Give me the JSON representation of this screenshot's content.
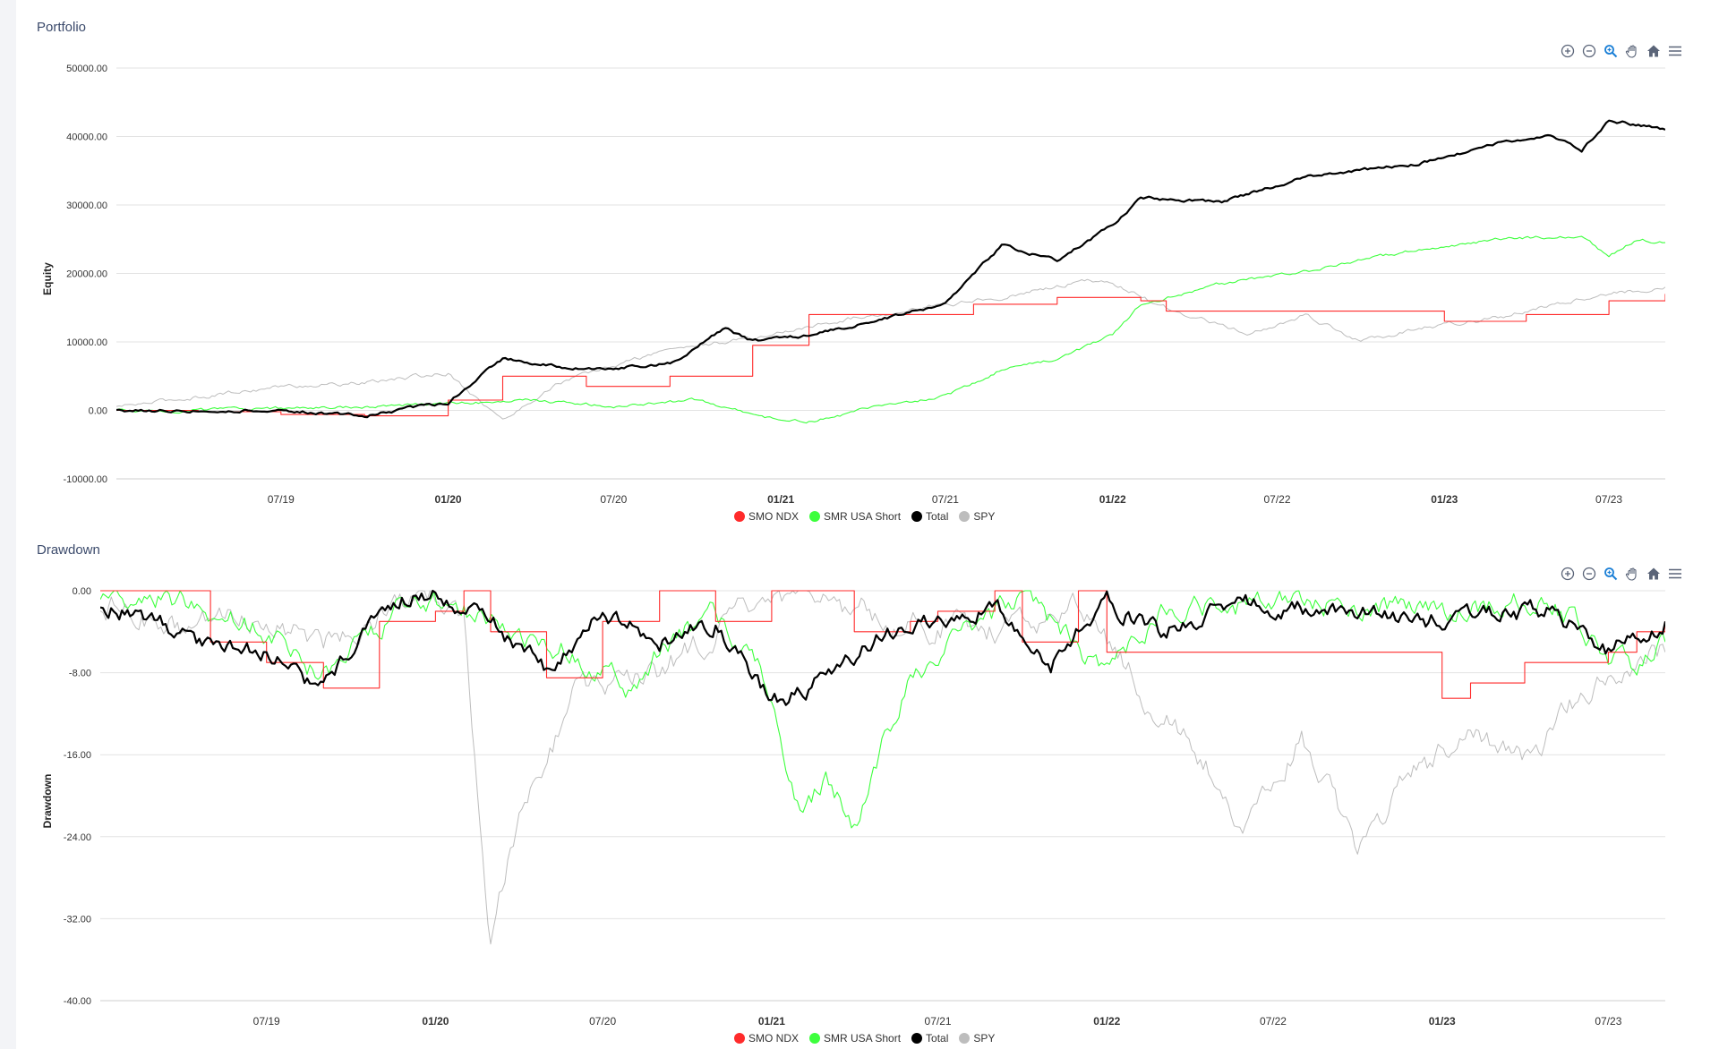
{
  "colors": {
    "smo_ndx": "#ff2b2b",
    "smr_usa_short": "#3dff3d",
    "total": "#000000",
    "spy": "#bdbdbd"
  },
  "toolbar_icons": [
    "zoom-in-icon",
    "zoom-out-icon",
    "magnifier-icon",
    "pan-hand-icon",
    "home-icon",
    "menu-icon"
  ],
  "chart_data": [
    {
      "type": "line",
      "title": "Portfolio",
      "ylabel": "Equity",
      "ylim": [
        -10000,
        50000
      ],
      "yticks": [
        "50000.00",
        "40000.00",
        "30000.00",
        "20000.00",
        "10000.00",
        "0.00",
        "-10000.00"
      ],
      "xlim": [
        "2019-01-01",
        "2023-09-01"
      ],
      "xticks": [
        {
          "label": "07/19",
          "date": "2019-07-01",
          "bold": false
        },
        {
          "label": "01/20",
          "date": "2020-01-01",
          "bold": true
        },
        {
          "label": "07/20",
          "date": "2020-07-01",
          "bold": false
        },
        {
          "label": "01/21",
          "date": "2021-01-01",
          "bold": true
        },
        {
          "label": "07/21",
          "date": "2021-07-01",
          "bold": false
        },
        {
          "label": "01/22",
          "date": "2022-01-01",
          "bold": true
        },
        {
          "label": "07/22",
          "date": "2022-07-01",
          "bold": false
        },
        {
          "label": "01/23",
          "date": "2023-01-01",
          "bold": true
        },
        {
          "label": "07/23",
          "date": "2023-07-01",
          "bold": false
        }
      ],
      "grid": true,
      "legend_position": "bottom-center",
      "series": [
        {
          "name": "SMO NDX",
          "color": "#ff2b2b",
          "step": true,
          "points": [
            [
              "2019-01-01",
              0
            ],
            [
              "2019-04-01",
              -200
            ],
            [
              "2019-07-01",
              -600
            ],
            [
              "2019-10-01",
              -800
            ],
            [
              "2020-01-01",
              1500
            ],
            [
              "2020-03-01",
              5000
            ],
            [
              "2020-06-01",
              3500
            ],
            [
              "2020-09-01",
              5000
            ],
            [
              "2020-12-01",
              9500
            ],
            [
              "2021-02-01",
              14000
            ],
            [
              "2021-05-01",
              14000
            ],
            [
              "2021-08-01",
              15500
            ],
            [
              "2021-11-01",
              16500
            ],
            [
              "2022-02-01",
              16000
            ],
            [
              "2022-03-01",
              14500
            ],
            [
              "2022-09-01",
              14500
            ],
            [
              "2023-01-01",
              13000
            ],
            [
              "2023-04-01",
              14000
            ],
            [
              "2023-07-01",
              16000
            ],
            [
              "2023-09-01",
              17000
            ]
          ]
        },
        {
          "name": "SMR USA Short",
          "color": "#3dff3d",
          "step": false,
          "points": [
            [
              "2019-01-01",
              0
            ],
            [
              "2019-04-01",
              0
            ],
            [
              "2019-07-01",
              300
            ],
            [
              "2019-10-01",
              500
            ],
            [
              "2020-01-01",
              1000
            ],
            [
              "2020-04-01",
              1500
            ],
            [
              "2020-07-01",
              600
            ],
            [
              "2020-10-01",
              1500
            ],
            [
              "2021-01-01",
              -1500
            ],
            [
              "2021-02-01",
              -1500
            ],
            [
              "2021-03-01",
              -1000
            ],
            [
              "2021-05-01",
              1000
            ],
            [
              "2021-07-01",
              2000
            ],
            [
              "2021-09-01",
              6000
            ],
            [
              "2021-11-01",
              7500
            ],
            [
              "2022-01-01",
              11000
            ],
            [
              "2022-02-01",
              15500
            ],
            [
              "2022-05-01",
              18500
            ],
            [
              "2022-09-01",
              21000
            ],
            [
              "2022-12-01",
              23500
            ],
            [
              "2023-03-01",
              25000
            ],
            [
              "2023-06-01",
              25500
            ],
            [
              "2023-07-01",
              22500
            ],
            [
              "2023-08-01",
              25000
            ],
            [
              "2023-09-01",
              24500
            ]
          ]
        },
        {
          "name": "Total",
          "color": "#000000",
          "step": false,
          "points": [
            [
              "2019-01-01",
              0
            ],
            [
              "2019-04-01",
              0
            ],
            [
              "2019-07-01",
              0
            ],
            [
              "2019-10-01",
              -800
            ],
            [
              "2020-01-01",
              1200
            ],
            [
              "2020-03-01",
              7500
            ],
            [
              "2020-06-01",
              6000
            ],
            [
              "2020-09-01",
              6800
            ],
            [
              "2020-11-01",
              12000
            ],
            [
              "2020-12-01",
              10000
            ],
            [
              "2021-02-01",
              11000
            ],
            [
              "2021-05-01",
              13500
            ],
            [
              "2021-07-01",
              15500
            ],
            [
              "2021-09-01",
              24000
            ],
            [
              "2021-11-01",
              22000
            ],
            [
              "2022-01-01",
              27000
            ],
            [
              "2022-02-01",
              31000
            ],
            [
              "2022-05-01",
              30500
            ],
            [
              "2022-08-01",
              34000
            ],
            [
              "2022-12-01",
              36000
            ],
            [
              "2023-03-01",
              39000
            ],
            [
              "2023-05-01",
              40000
            ],
            [
              "2023-06-01",
              38000
            ],
            [
              "2023-07-01",
              42500
            ],
            [
              "2023-09-01",
              41000
            ]
          ]
        },
        {
          "name": "SPY",
          "color": "#bdbdbd",
          "step": false,
          "points": [
            [
              "2019-01-01",
              500
            ],
            [
              "2019-04-01",
              2000
            ],
            [
              "2019-07-01",
              3500
            ],
            [
              "2019-10-01",
              4000
            ],
            [
              "2020-01-01",
              5500
            ],
            [
              "2020-03-01",
              -1500
            ],
            [
              "2020-05-01",
              4000
            ],
            [
              "2020-09-01",
              9000
            ],
            [
              "2020-12-01",
              10500
            ],
            [
              "2021-03-01",
              13000
            ],
            [
              "2021-06-01",
              15000
            ],
            [
              "2021-09-01",
              16500
            ],
            [
              "2021-12-01",
              19000
            ],
            [
              "2022-01-01",
              18500
            ],
            [
              "2022-03-01",
              15000
            ],
            [
              "2022-06-01",
              11000
            ],
            [
              "2022-08-01",
              14000
            ],
            [
              "2022-10-01",
              10000
            ],
            [
              "2022-12-01",
              12000
            ],
            [
              "2023-03-01",
              13500
            ],
            [
              "2023-06-01",
              16500
            ],
            [
              "2023-09-01",
              18000
            ]
          ]
        }
      ]
    },
    {
      "type": "line",
      "title": "Drawdown",
      "ylabel": "Drawdown",
      "ylim": [
        -40,
        0
      ],
      "yticks": [
        "0.00",
        "-8.00",
        "-16.00",
        "-24.00",
        "-32.00",
        "-40.00"
      ],
      "xlim": [
        "2019-01-01",
        "2023-09-01"
      ],
      "xticks": [
        {
          "label": "07/19",
          "date": "2019-07-01",
          "bold": false
        },
        {
          "label": "01/20",
          "date": "2020-01-01",
          "bold": true
        },
        {
          "label": "07/20",
          "date": "2020-07-01",
          "bold": false
        },
        {
          "label": "01/21",
          "date": "2021-01-01",
          "bold": true
        },
        {
          "label": "07/21",
          "date": "2021-07-01",
          "bold": false
        },
        {
          "label": "01/22",
          "date": "2022-01-01",
          "bold": true
        },
        {
          "label": "07/22",
          "date": "2022-07-01",
          "bold": false
        },
        {
          "label": "01/23",
          "date": "2023-01-01",
          "bold": true
        },
        {
          "label": "07/23",
          "date": "2023-07-01",
          "bold": false
        }
      ],
      "grid": true,
      "legend_position": "bottom-center",
      "series": [
        {
          "name": "SMO NDX",
          "color": "#ff2b2b",
          "step": true,
          "points": [
            [
              "2019-01-01",
              0
            ],
            [
              "2019-05-01",
              -5
            ],
            [
              "2019-07-01",
              -7
            ],
            [
              "2019-09-01",
              -9.5
            ],
            [
              "2019-11-01",
              -3
            ],
            [
              "2020-01-01",
              -2
            ],
            [
              "2020-02-01",
              0
            ],
            [
              "2020-03-01",
              -4
            ],
            [
              "2020-05-01",
              -8.5
            ],
            [
              "2020-07-01",
              -3
            ],
            [
              "2020-09-01",
              0
            ],
            [
              "2020-11-01",
              -3
            ],
            [
              "2021-01-01",
              0
            ],
            [
              "2021-04-01",
              -4
            ],
            [
              "2021-06-01",
              -3
            ],
            [
              "2021-07-01",
              -2
            ],
            [
              "2021-09-01",
              0
            ],
            [
              "2021-10-01",
              -5
            ],
            [
              "2021-12-01",
              0
            ],
            [
              "2022-01-01",
              -6
            ],
            [
              "2022-12-01",
              -6
            ],
            [
              "2023-01-01",
              -10.5
            ],
            [
              "2023-02-01",
              -9
            ],
            [
              "2023-04-01",
              -7
            ],
            [
              "2023-07-01",
              -6
            ],
            [
              "2023-08-01",
              -4
            ],
            [
              "2023-09-01",
              -3
            ]
          ]
        },
        {
          "name": "SMR USA Short",
          "color": "#3dff3d",
          "step": false,
          "points": [
            [
              "2019-01-01",
              0
            ],
            [
              "2019-04-01",
              -1
            ],
            [
              "2019-06-01",
              -3
            ],
            [
              "2019-09-01",
              -8
            ],
            [
              "2019-12-01",
              -1
            ],
            [
              "2020-02-01",
              -2
            ],
            [
              "2020-04-01",
              -4
            ],
            [
              "2020-06-01",
              -6
            ],
            [
              "2020-08-01",
              -10
            ],
            [
              "2020-09-01",
              -6
            ],
            [
              "2020-11-01",
              -2
            ],
            [
              "2021-01-01",
              -10
            ],
            [
              "2021-02-01",
              -22
            ],
            [
              "2021-03-01",
              -18
            ],
            [
              "2021-04-01",
              -23
            ],
            [
              "2021-05-01",
              -15
            ],
            [
              "2021-06-01",
              -9
            ],
            [
              "2021-08-01",
              -4
            ],
            [
              "2021-10-01",
              -1
            ],
            [
              "2022-01-01",
              -8
            ],
            [
              "2022-03-01",
              -2
            ],
            [
              "2022-08-01",
              -1
            ],
            [
              "2023-01-01",
              -2
            ],
            [
              "2023-05-01",
              -1
            ],
            [
              "2023-07-01",
              -6
            ],
            [
              "2023-08-01",
              -8
            ],
            [
              "2023-09-01",
              -5
            ]
          ]
        },
        {
          "name": "Total",
          "color": "#000000",
          "step": false,
          "points": [
            [
              "2019-01-01",
              -1
            ],
            [
              "2019-03-01",
              -3
            ],
            [
              "2019-05-01",
              -5.5
            ],
            [
              "2019-07-01",
              -6
            ],
            [
              "2019-09-01",
              -10
            ],
            [
              "2019-11-01",
              -1
            ],
            [
              "2020-01-01",
              0
            ],
            [
              "2020-03-01",
              -3
            ],
            [
              "2020-05-01",
              -8
            ],
            [
              "2020-07-01",
              -2
            ],
            [
              "2020-09-01",
              -5
            ],
            [
              "2020-11-01",
              -3
            ],
            [
              "2021-01-01",
              -11
            ],
            [
              "2021-02-01",
              -10
            ],
            [
              "2021-03-01",
              -8
            ],
            [
              "2021-05-01",
              -4
            ],
            [
              "2021-07-01",
              -3
            ],
            [
              "2021-09-01",
              -1
            ],
            [
              "2021-11-01",
              -7
            ],
            [
              "2022-01-01",
              -1
            ],
            [
              "2022-03-01",
              -4
            ],
            [
              "2022-06-01",
              -1
            ],
            [
              "2022-09-01",
              -2
            ],
            [
              "2023-01-01",
              -3
            ],
            [
              "2023-05-01",
              -2
            ],
            [
              "2023-07-01",
              -6
            ],
            [
              "2023-09-01",
              -3
            ]
          ]
        },
        {
          "name": "SPY",
          "color": "#bdbdbd",
          "step": false,
          "points": [
            [
              "2019-01-01",
              -1
            ],
            [
              "2019-04-01",
              -4
            ],
            [
              "2019-06-01",
              -2
            ],
            [
              "2019-09-01",
              -5
            ],
            [
              "2020-01-01",
              0
            ],
            [
              "2020-02-01",
              -3
            ],
            [
              "2020-03-01",
              -34
            ],
            [
              "2020-04-01",
              -22
            ],
            [
              "2020-06-01",
              -10
            ],
            [
              "2020-09-01",
              -8
            ],
            [
              "2020-12-01",
              -2
            ],
            [
              "2021-03-01",
              -1
            ],
            [
              "2021-06-01",
              -3
            ],
            [
              "2021-09-01",
              -4
            ],
            [
              "2021-12-01",
              -1
            ],
            [
              "2022-01-01",
              -5
            ],
            [
              "2022-03-01",
              -12
            ],
            [
              "2022-05-01",
              -18
            ],
            [
              "2022-06-01",
              -23
            ],
            [
              "2022-08-01",
              -14
            ],
            [
              "2022-10-01",
              -25
            ],
            [
              "2022-12-01",
              -18
            ],
            [
              "2023-02-01",
              -14
            ],
            [
              "2023-04-01",
              -17
            ],
            [
              "2023-06-01",
              -10
            ],
            [
              "2023-09-01",
              -6
            ]
          ]
        }
      ]
    }
  ]
}
